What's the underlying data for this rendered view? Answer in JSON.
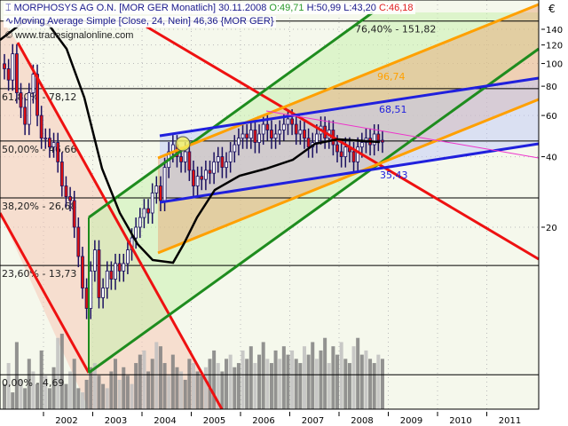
{
  "header": {
    "symbol_line": "MORPHOSYS AG O.N. [MOR GER  Monatlich] 30.11.2008",
    "open": "O:49,71",
    "high": "H:50,99",
    "low": "L:43,20",
    "close": "C:46,18",
    "indicator_line": "Moving Average Simple [Close, 24, Nein] 46,36 {MOR GER}",
    "copyright": "© www.tradesignalonline.com"
  },
  "colors": {
    "background": "#f5f8ec",
    "down_candle": "#e01010",
    "up_candle": "#ffffff",
    "candle_outline": "#1a1060",
    "moving_average": "#000000",
    "red_trend": "#ee1111",
    "green_channel": "#1e8c1e",
    "orange_channel": "#ffa000",
    "blue_channel": "#2020dd",
    "magenta_line": "#ee33cc",
    "fib_line": "#000000",
    "volume": "#808080"
  },
  "chart_data": {
    "type": "candlestick",
    "title": "MORPHOSYS AG O.N. [MOR GER  Monatlich]",
    "y_unit": "€",
    "y_scale": "log",
    "ylim": [
      4,
      160
    ],
    "y_ticks": [
      "140",
      "120",
      "100",
      "80",
      "60",
      "40",
      "20"
    ],
    "x_ticks": [
      "2002",
      "2003",
      "2004",
      "2005",
      "2006",
      "2007",
      "2008",
      "2009",
      "2010",
      "2011"
    ],
    "grid": true,
    "interval": "monthly",
    "dates": [
      "2001-03",
      "2001-04",
      "2001-05",
      "2001-06",
      "2001-07",
      "2001-08",
      "2001-09",
      "2001-10",
      "2001-11",
      "2001-12",
      "2002-01",
      "2002-02",
      "2002-03",
      "2002-04",
      "2002-05",
      "2002-06",
      "2002-07",
      "2002-08",
      "2002-09",
      "2002-10",
      "2002-11",
      "2002-12",
      "2003-01",
      "2003-02",
      "2003-03",
      "2003-04",
      "2003-05",
      "2003-06",
      "2003-07",
      "2003-08",
      "2003-09",
      "2003-10",
      "2003-11",
      "2003-12",
      "2004-01",
      "2004-02",
      "2004-03",
      "2004-04",
      "2004-05",
      "2004-06",
      "2004-07",
      "2004-08",
      "2004-09",
      "2004-10",
      "2004-11",
      "2004-12",
      "2005-01",
      "2005-02",
      "2005-03",
      "2005-04",
      "2005-05",
      "2005-06",
      "2005-07",
      "2005-08",
      "2005-09",
      "2005-10",
      "2005-11",
      "2005-12",
      "2006-01",
      "2006-02",
      "2006-03",
      "2006-04",
      "2006-05",
      "2006-06",
      "2006-07",
      "2006-08",
      "2006-09",
      "2006-10",
      "2006-11",
      "2006-12",
      "2007-01",
      "2007-02",
      "2007-03",
      "2007-04",
      "2007-05",
      "2007-06",
      "2007-07",
      "2007-08",
      "2007-09",
      "2007-10",
      "2007-11",
      "2007-12",
      "2008-01",
      "2008-02",
      "2008-03",
      "2008-04",
      "2008-05",
      "2008-06",
      "2008-07",
      "2008-08",
      "2008-09",
      "2008-10",
      "2008-11"
    ],
    "close": [
      95,
      85,
      110,
      75,
      65,
      55,
      75,
      90,
      60,
      48,
      48,
      44,
      46,
      38,
      30,
      27,
      26,
      20,
      15,
      11,
      9,
      13,
      16,
      10,
      11,
      13,
      12,
      14,
      13,
      14,
      16,
      18,
      20,
      22,
      24,
      23,
      28,
      30,
      26,
      36,
      42,
      45,
      40,
      38,
      42,
      35,
      30,
      33,
      32,
      35,
      34,
      38,
      40,
      36,
      38,
      42,
      45,
      48,
      50,
      48,
      52,
      46,
      50,
      55,
      52,
      48,
      50,
      52,
      55,
      58,
      55,
      50,
      52,
      48,
      44,
      46,
      50,
      54,
      48,
      52,
      45,
      42,
      40,
      44,
      42,
      38,
      44,
      46,
      48,
      45,
      50,
      47,
      46.18
    ],
    "volume": [
      30,
      55,
      20,
      80,
      35,
      25,
      60,
      45,
      30,
      70,
      40,
      25,
      50,
      85,
      90,
      30,
      45,
      60,
      25,
      20,
      35,
      50,
      55,
      40,
      30,
      25,
      45,
      60,
      35,
      50,
      40,
      30,
      55,
      65,
      70,
      45,
      60,
      80,
      75,
      55,
      40,
      65,
      50,
      45,
      35,
      60,
      55,
      45,
      40,
      50,
      60,
      70,
      55,
      45,
      60,
      65,
      50,
      55,
      70,
      60,
      75,
      55,
      65,
      80,
      60,
      55,
      70,
      60,
      75,
      65,
      70,
      60,
      55,
      75,
      65,
      80,
      60,
      70,
      85,
      55,
      75,
      65,
      80,
      60,
      55,
      75,
      85,
      65,
      70,
      60,
      55,
      65,
      60
    ],
    "moving_average": {
      "name": "Moving Average Simple [Close, 24, Nein]",
      "last": 46.36
    },
    "fibonacci_levels": [
      {
        "label": "76,40% - 151,82",
        "value": 151.82
      },
      {
        "label": "61,80% - 78,12",
        "value": 78.12
      },
      {
        "label": "50,00% - 46,66",
        "value": 46.66
      },
      {
        "label": "38,20% - 26,68",
        "value": 26.68
      },
      {
        "label": "23,60% - 13,73",
        "value": 13.73
      },
      {
        "label": "0,00% - 4,69",
        "value": 4.69
      }
    ],
    "annotations": [
      {
        "label": "96,74",
        "value": 96.74,
        "color": "#ffa000"
      },
      {
        "label": "68,51",
        "value": 68.51,
        "color": "#2020dd"
      },
      {
        "label": "35,43",
        "value": 35.43,
        "color": "#2020dd"
      }
    ]
  }
}
